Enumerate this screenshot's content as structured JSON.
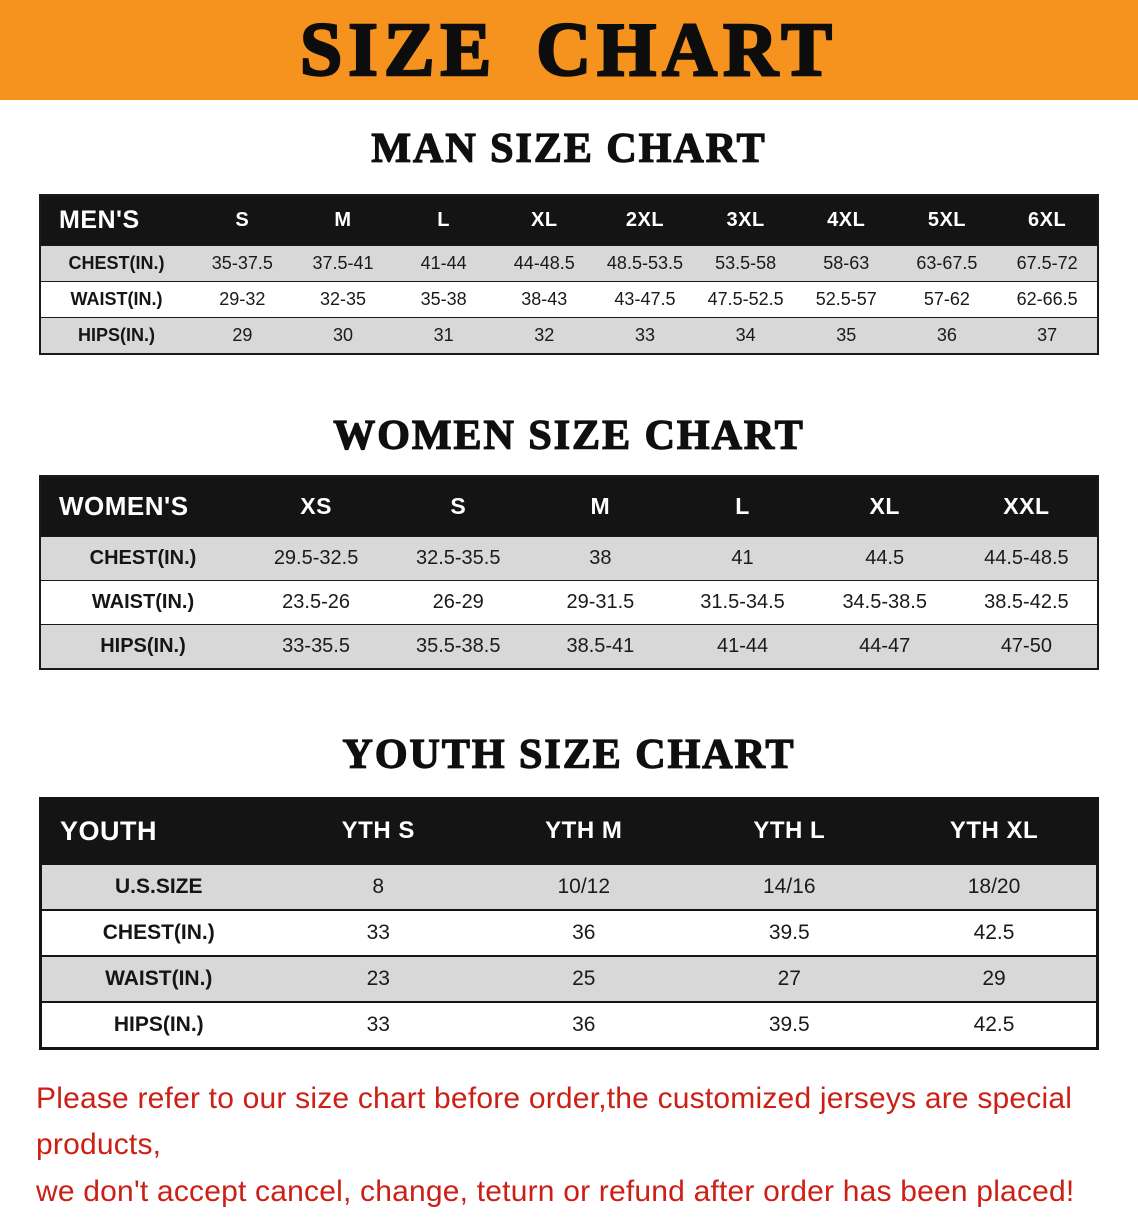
{
  "banner": {
    "title": "SIZE CHART"
  },
  "colors": {
    "banner_bg": "#f6921e",
    "header_bg": "#141414",
    "row_alt": "#d8d8d8",
    "footer_text": "#cc2017"
  },
  "sections": {
    "men": {
      "heading": "MAN SIZE CHART",
      "table": {
        "header": [
          "MEN'S",
          "S",
          "M",
          "L",
          "XL",
          "2XL",
          "3XL",
          "4XL",
          "5XL",
          "6XL"
        ],
        "rows": [
          [
            "CHEST(IN.)",
            "35-37.5",
            "37.5-41",
            "41-44",
            "44-48.5",
            "48.5-53.5",
            "53.5-58",
            "58-63",
            "63-67.5",
            "67.5-72"
          ],
          [
            "WAIST(IN.)",
            "29-32",
            "32-35",
            "35-38",
            "38-43",
            "43-47.5",
            "47.5-52.5",
            "52.5-57",
            "57-62",
            "62-66.5"
          ],
          [
            "HIPS(IN.)",
            "29",
            "30",
            "31",
            "32",
            "33",
            "34",
            "35",
            "36",
            "37"
          ]
        ]
      }
    },
    "women": {
      "heading": "WOMEN SIZE CHART",
      "table": {
        "header": [
          "WOMEN'S",
          "XS",
          "S",
          "M",
          "L",
          "XL",
          "XXL"
        ],
        "rows": [
          [
            "CHEST(IN.)",
            "29.5-32.5",
            "32.5-35.5",
            "38",
            "41",
            "44.5",
            "44.5-48.5"
          ],
          [
            "WAIST(IN.)",
            "23.5-26",
            "26-29",
            "29-31.5",
            "31.5-34.5",
            "34.5-38.5",
            "38.5-42.5"
          ],
          [
            "HIPS(IN.)",
            "33-35.5",
            "35.5-38.5",
            "38.5-41",
            "41-44",
            "44-47",
            "47-50"
          ]
        ]
      }
    },
    "youth": {
      "heading": "YOUTH SIZE CHART",
      "table": {
        "header": [
          "YOUTH",
          "YTH S",
          "YTH M",
          "YTH L",
          "YTH XL"
        ],
        "rows": [
          [
            "U.S.SIZE",
            "8",
            "10/12",
            "14/16",
            "18/20"
          ],
          [
            "CHEST(IN.)",
            "33",
            "36",
            "39.5",
            "42.5"
          ],
          [
            "WAIST(IN.)",
            "23",
            "25",
            "27",
            "29"
          ],
          [
            "HIPS(IN.)",
            "33",
            "36",
            "39.5",
            "42.5"
          ]
        ]
      }
    }
  },
  "footer": {
    "line1": "Please refer to our size chart before order,the customized jerseys are special products,",
    "line2": "we don't accept cancel, change, teturn or refund after order has been placed!"
  }
}
